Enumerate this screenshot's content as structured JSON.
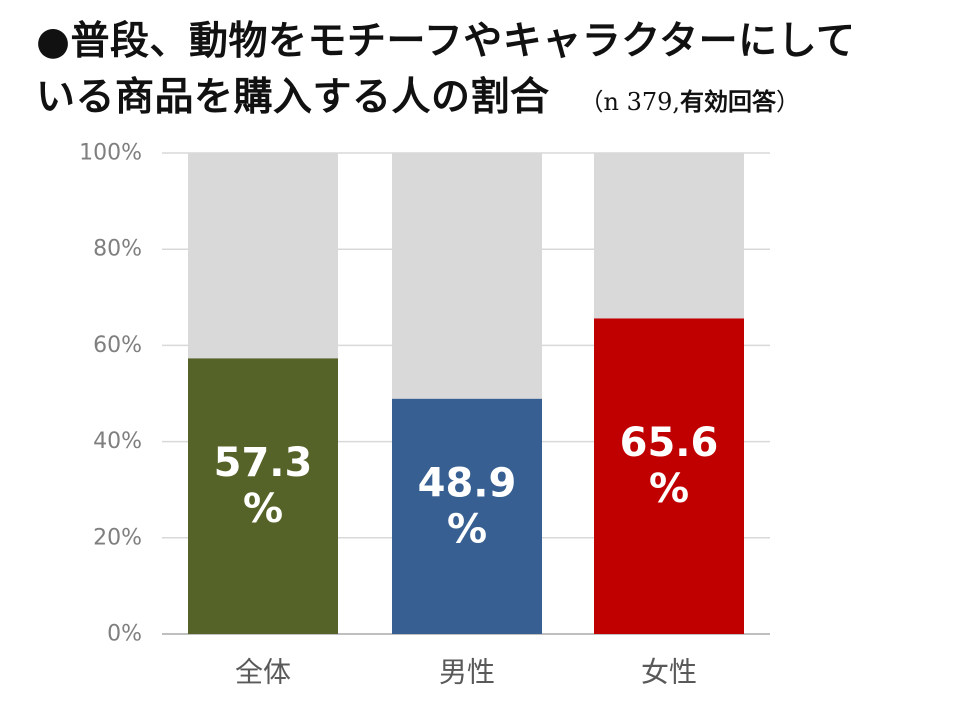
{
  "title": {
    "line1": "●普段、動物をモチーフやキャラクターにして",
    "line2": "いる商品を購入する人の割合",
    "note_prefix": "（n 379,",
    "note_bold": "有効回答",
    "note_suffix": "）"
  },
  "chart_data": {
    "type": "bar",
    "stacked_to_100": true,
    "categories": [
      "全体",
      "男性",
      "女性"
    ],
    "values": [
      57.3,
      48.9,
      65.6
    ],
    "value_labels": [
      [
        "57.3",
        "%"
      ],
      [
        "48.9",
        "%"
      ],
      [
        "65.6",
        "%"
      ]
    ],
    "ylim": [
      0,
      100
    ],
    "yticks": [
      "0%",
      "20%",
      "40%",
      "60%",
      "80%",
      "100%"
    ],
    "grid": true,
    "colors": [
      "#556328",
      "#375F91",
      "#C00000"
    ],
    "remainder_color": "#D9D9D9"
  }
}
